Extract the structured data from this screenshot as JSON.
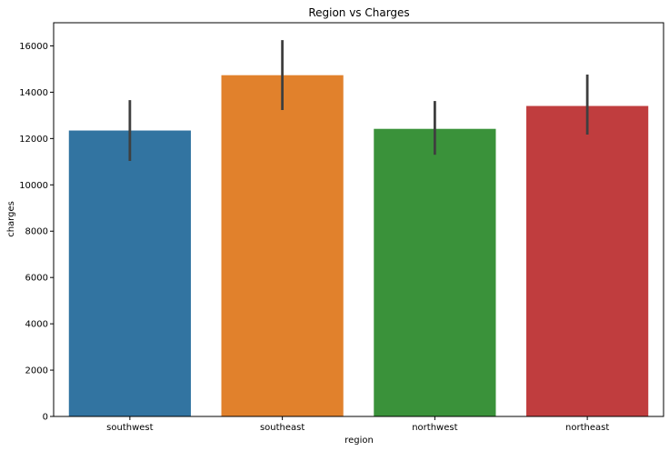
{
  "chart_data": {
    "type": "bar",
    "title": "Region vs Charges",
    "xlabel": "region",
    "ylabel": "charges",
    "categories": [
      "southwest",
      "southeast",
      "northwest",
      "northeast"
    ],
    "values": [
      12346,
      14735,
      12418,
      13406
    ],
    "error_low": [
      11030,
      13230,
      11300,
      12170
    ],
    "error_high": [
      13660,
      16250,
      13620,
      14760
    ],
    "colors": [
      "#3274a1",
      "#e1812c",
      "#3a923a",
      "#c03d3e"
    ],
    "error_color": "#3f3f3f",
    "ylim": [
      0,
      17000
    ],
    "yticks": [
      0,
      2000,
      4000,
      6000,
      8000,
      10000,
      12000,
      14000,
      16000
    ],
    "grid": false,
    "legend": "none"
  }
}
